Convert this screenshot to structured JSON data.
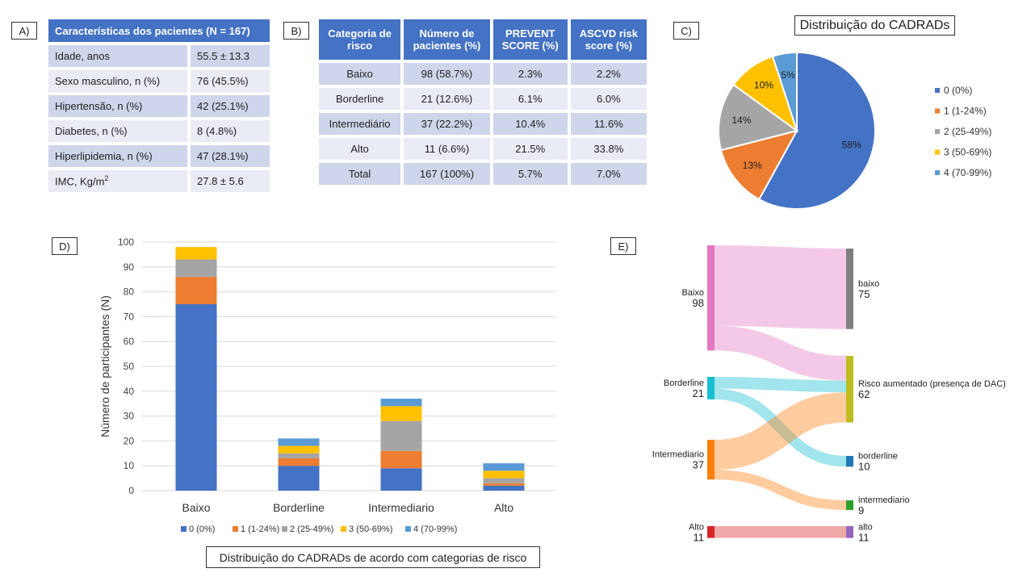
{
  "panels": {
    "a": "A)",
    "b": "B)",
    "c": "C)",
    "d": "D)",
    "e": "E)"
  },
  "tableA": {
    "header": "Características dos pacientes (N = 167)",
    "rows": [
      {
        "label": "Idade, anos",
        "value": "55.5 ± 13.3"
      },
      {
        "label": "Sexo masculino, n (%)",
        "value": "76 (45.5%)"
      },
      {
        "label": "Hipertensão, n (%)",
        "value": "42 (25.1%)"
      },
      {
        "label": "Diabetes, n (%)",
        "value": "8 (4.8%)"
      },
      {
        "label": "Hiperlipidemia, n (%)",
        "value": "47 (28.1%)"
      },
      {
        "label": "IMC, Kg/m",
        "label_sup": "2",
        "value": "27.8 ± 5.6"
      }
    ]
  },
  "tableB": {
    "headers": [
      [
        "Categoria de",
        "risco"
      ],
      [
        "Número de",
        "pacientes (%)"
      ],
      [
        "PREVENT",
        "SCORE (%)"
      ],
      [
        "ASCVD risk",
        "score (%)"
      ]
    ],
    "rows": [
      [
        "Baixo",
        "98 (58.7%)",
        "2.3%",
        "2.2%"
      ],
      [
        "Borderline",
        "21 (12.6%)",
        "6.1%",
        "6.0%"
      ],
      [
        "Intermediário",
        "37 (22.2%)",
        "10.4%",
        "11.6%"
      ],
      [
        "Alto",
        "11 (6.6%)",
        "21.5%",
        "33.8%"
      ],
      [
        "Total",
        "167 (100%)",
        "5.7%",
        "7.0%"
      ]
    ]
  },
  "colors": {
    "cad0": "#4472c4",
    "cad1": "#ed7d31",
    "cad2": "#a5a5a5",
    "cad3": "#ffc000",
    "cad4": "#5b9bd5",
    "table_header": "#4472c4",
    "row_odd": "#cfd5ea",
    "row_even": "#e9ebf5"
  },
  "chart_data": [
    {
      "type": "pie",
      "title": "Distribuição do CADRADs",
      "labels": [
        "0 (0%)",
        "1 (1-24%)",
        "2 (25-49%)",
        "3 (50-69%)",
        "4 (70-99%)"
      ],
      "values": [
        58,
        13,
        14,
        10,
        5
      ],
      "data_labels": [
        "58%",
        "13%",
        "14%",
        "10%",
        "5%"
      ],
      "legend": "right"
    },
    {
      "type": "bar",
      "stacked": true,
      "title": "Distribuição do CADRADs de acordo com categorias de risco",
      "categories": [
        "Baixo",
        "Borderline",
        "Intermediario",
        "Alto"
      ],
      "series": [
        {
          "name": "0 (0%)",
          "values": [
            75,
            10,
            9,
            2
          ]
        },
        {
          "name": "1 (1-24%)",
          "values": [
            11,
            3,
            7,
            1
          ]
        },
        {
          "name": "2 (25-49%)",
          "values": [
            7,
            2,
            12,
            2
          ]
        },
        {
          "name": "3 (50-69%)",
          "values": [
            5,
            3,
            6,
            3
          ]
        },
        {
          "name": "4 (70-99%)",
          "values": [
            0,
            3,
            3,
            3
          ]
        }
      ],
      "ylabel": "Número de participantes (N)",
      "ylim": [
        0,
        100
      ],
      "yticks": [
        0,
        10,
        20,
        30,
        40,
        50,
        60,
        70,
        80,
        90,
        100
      ],
      "grid": true,
      "legend": "bottom"
    },
    {
      "type": "sankey",
      "sources": [
        {
          "name": "Baixo",
          "value": 98,
          "color": "#e377c2"
        },
        {
          "name": "Borderline",
          "value": 21,
          "color": "#17becf"
        },
        {
          "name": "Intermediario",
          "value": 37,
          "color": "#ff7f0e"
        },
        {
          "name": "Alto",
          "value": 11,
          "color": "#d62728"
        }
      ],
      "targets": [
        {
          "name": "baixo",
          "value": 75,
          "color": "#7f7f7f"
        },
        {
          "name": "Risco aumentado (presença de DAC)",
          "value": 62,
          "color": "#bcbd22"
        },
        {
          "name": "borderline",
          "value": 10,
          "color": "#1f77b4"
        },
        {
          "name": "intermediario",
          "value": 9,
          "color": "#2ca02c"
        },
        {
          "name": "alto",
          "value": 11,
          "color": "#9467bd"
        }
      ],
      "links": [
        {
          "source": "Baixo",
          "target": "baixo",
          "value": 75
        },
        {
          "source": "Baixo",
          "target": "Risco aumentado (presença de DAC)",
          "value": 23
        },
        {
          "source": "Borderline",
          "target": "Risco aumentado (presença de DAC)",
          "value": 11
        },
        {
          "source": "Borderline",
          "target": "borderline",
          "value": 10
        },
        {
          "source": "Intermediario",
          "target": "Risco aumentado (presença de DAC)",
          "value": 28
        },
        {
          "source": "Intermediario",
          "target": "intermediario",
          "value": 9
        },
        {
          "source": "Alto",
          "target": "alto",
          "value": 11
        }
      ]
    }
  ]
}
